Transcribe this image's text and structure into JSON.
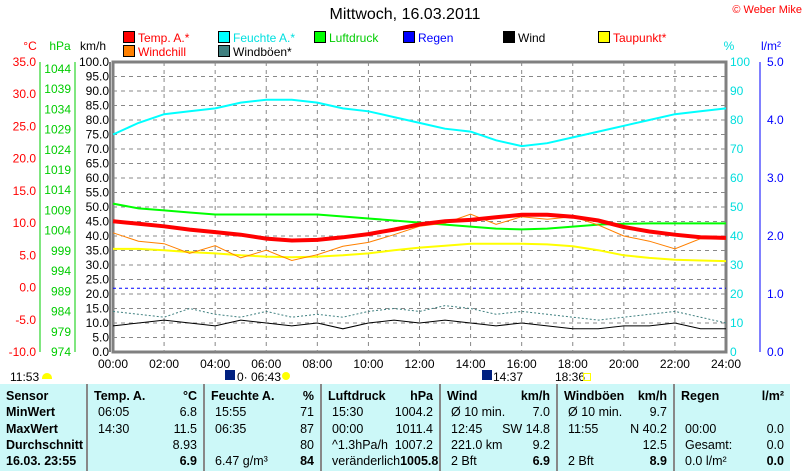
{
  "title": "Mittwoch, 16.03.2011",
  "copyright": "© Weber Mike",
  "legend": [
    {
      "label": "Temp. A.*",
      "color": "#ff0000",
      "text_color": "#ff0000"
    },
    {
      "label": "Feuchte A.*",
      "color": "#00ffff",
      "text_color": "#00e0e0"
    },
    {
      "label": "Luftdruck",
      "color": "#00ff00",
      "text_color": "#00cc00"
    },
    {
      "label": "Regen",
      "color": "#0000ff",
      "text_color": "#0000ff"
    },
    {
      "label": "Wind",
      "color": "#000000",
      "text_color": "#000000"
    },
    {
      "label": "Taupunkt*",
      "color": "#ffff00",
      "text_color": "#ff0000"
    },
    {
      "label": "Windchill",
      "color": "#ff8000",
      "text_color": "#ff0000"
    },
    {
      "label": "Windböen*",
      "color": "#408080",
      "text_color": "#000000"
    }
  ],
  "chart_data": {
    "type": "line",
    "title": "Mittwoch, 16.03.2011",
    "axes": {
      "celsius": {
        "label": "°C",
        "ticks": [
          "35.0",
          "30.0",
          "25.0",
          "20.0",
          "15.0",
          "10.0",
          "5.0",
          "0.0",
          "-5.0",
          "-10.0"
        ],
        "range": [
          -10,
          35
        ]
      },
      "hpa": {
        "label": "hPa",
        "ticks": [
          "1044",
          "1039",
          "1034",
          "1029",
          "1024",
          "1019",
          "1014",
          "1009",
          "1004",
          "999",
          "994",
          "989",
          "984",
          "979",
          "974"
        ],
        "range": [
          974,
          1044
        ]
      },
      "kmh": {
        "label": "km/h",
        "ticks": [
          "100.0",
          "95.0",
          "90.0",
          "85.0",
          "80.0",
          "75.0",
          "70.0",
          "65.0",
          "60.0",
          "55.0",
          "50.0",
          "45.0",
          "40.0",
          "35.0",
          "30.0",
          "25.0",
          "20.0",
          "15.0",
          "10.0",
          "5.0",
          "0.0"
        ],
        "range": [
          0,
          100
        ]
      },
      "percent": {
        "label": "%",
        "ticks": [
          "100",
          "90",
          "80",
          "70",
          "60",
          "50",
          "40",
          "30",
          "20",
          "10",
          "0"
        ],
        "range": [
          0,
          100
        ]
      },
      "rain": {
        "label": "l/m²",
        "ticks": [
          "5.0",
          "4.0",
          "3.0",
          "2.0",
          "1.0",
          "0.0"
        ],
        "range": [
          0,
          5
        ]
      },
      "x": {
        "ticks": [
          "00:00",
          "02:00",
          "04:00",
          "06:00",
          "08:00",
          "10:00",
          "12:00",
          "14:00",
          "16:00",
          "18:00",
          "20:00",
          "22:00",
          "24:00"
        ],
        "range": [
          0,
          24
        ]
      }
    },
    "x_hours": [
      0,
      1,
      2,
      3,
      4,
      5,
      6,
      7,
      8,
      9,
      10,
      11,
      12,
      13,
      14,
      15,
      16,
      17,
      18,
      19,
      20,
      21,
      22,
      23,
      24
    ],
    "series": [
      {
        "name": "Feuchte A.*",
        "axis": "percent",
        "color": "#00ffff",
        "width": 2,
        "values": [
          75,
          79,
          82,
          83,
          84,
          86,
          87,
          87,
          86,
          84,
          83,
          81,
          79,
          77,
          76,
          73,
          71,
          72,
          74,
          76,
          78,
          80,
          82,
          83,
          84
        ]
      },
      {
        "name": "Luftdruck",
        "axis": "hpa",
        "color": "#00ff00",
        "width": 2,
        "values": [
          1010.7,
          1009.5,
          1009,
          1008.5,
          1008,
          1008,
          1008,
          1008,
          1008,
          1007.5,
          1007,
          1006.5,
          1006,
          1005.5,
          1005,
          1004.5,
          1004.3,
          1004.5,
          1005,
          1005.5,
          1005.7,
          1005.8,
          1005.8,
          1005.8,
          1005.8
        ]
      },
      {
        "name": "Taupunkt*",
        "axis": "celsius",
        "color": "#ffff00",
        "width": 2,
        "values": [
          6,
          6,
          5.8,
          5.5,
          5.3,
          5,
          4.8,
          4.7,
          4.8,
          5,
          5.3,
          5.8,
          6.2,
          6.5,
          6.8,
          6.8,
          6.8,
          6.7,
          6.4,
          5.8,
          5,
          4.6,
          4.3,
          4.2,
          4.1
        ]
      },
      {
        "name": "Windchill",
        "axis": "celsius",
        "color": "#ff8000",
        "width": 1,
        "values": [
          8.5,
          7.2,
          6.8,
          5.3,
          6.5,
          4.6,
          5.8,
          4.2,
          5.1,
          6.4,
          7.0,
          8.2,
          9.5,
          10.0,
          11.4,
          9.8,
          11.0,
          10.6,
          11.0,
          9.7,
          8.0,
          7.2,
          6.0,
          7.6,
          7.5
        ]
      },
      {
        "name": "Temp. A.*",
        "axis": "celsius",
        "color": "#ff0000",
        "width": 4,
        "values": [
          10.3,
          9.9,
          9.5,
          9.0,
          8.6,
          8.2,
          7.6,
          7.3,
          7.4,
          7.8,
          8.3,
          9.0,
          9.8,
          10.3,
          10.5,
          10.9,
          11.3,
          11.3,
          11.0,
          10.4,
          9.4,
          8.7,
          8.2,
          7.8,
          7.7
        ]
      },
      {
        "name": "Windböen*",
        "axis": "kmh",
        "color": "#408080",
        "width": 1,
        "dash": "2,2",
        "values": [
          14,
          13,
          12,
          15,
          13,
          12,
          14,
          12,
          13,
          12,
          14,
          15,
          14,
          16,
          15,
          13,
          14,
          13,
          12,
          11,
          12,
          13,
          14,
          12,
          10
        ]
      },
      {
        "name": "Wind",
        "axis": "kmh",
        "color": "#000000",
        "width": 1,
        "values": [
          9,
          10,
          11,
          10,
          9,
          11,
          10,
          9,
          10,
          8,
          10,
          11,
          10,
          11,
          10,
          9,
          10,
          9,
          8,
          8,
          9,
          9,
          10,
          8,
          8
        ]
      }
    ],
    "regen_line_kmh": 22
  },
  "astro": {
    "moonset": "11:53",
    "moonrise": "0· 06:43",
    "sunrise_label": "06:43",
    "moon_phase_time": "14:37",
    "sunset": "18:36"
  },
  "table": {
    "sensor": {
      "header": "Sensor",
      "rows": [
        "MinWert",
        "MaxWert",
        "Durchschnitt",
        "16.03. 23:55"
      ]
    },
    "cols": [
      {
        "header": "Temp. A.",
        "unit": "°C",
        "rows": [
          [
            "06:05",
            "6.8"
          ],
          [
            "14:30",
            "11.5"
          ],
          [
            "",
            "8.93"
          ],
          [
            "",
            "6.9"
          ]
        ]
      },
      {
        "header": "Feuchte A.",
        "unit": "%",
        "rows": [
          [
            "15:55",
            "71"
          ],
          [
            "06:35",
            "87"
          ],
          [
            "",
            "80"
          ],
          [
            "6.47 g/m³",
            "84"
          ]
        ]
      },
      {
        "header": "Luftdruck",
        "unit": "hPa",
        "rows": [
          [
            "15:30",
            "1004.2"
          ],
          [
            "00:00",
            "1011.4"
          ],
          [
            "^1.3hPa/h",
            "1007.2"
          ],
          [
            "veränderlich",
            "1005.8"
          ]
        ]
      },
      {
        "header": "Wind",
        "unit": "km/h",
        "rows": [
          [
            "Ø 10 min.",
            "7.0"
          ],
          [
            "12:45",
            "SW 14.8"
          ],
          [
            "221.0 km",
            "9.2"
          ],
          [
            "2 Bft",
            "6.9"
          ]
        ]
      },
      {
        "header": "Windböen",
        "unit": "km/h",
        "rows": [
          [
            "Ø 10 min.",
            "9.7"
          ],
          [
            "11:55",
            "N 40.2"
          ],
          [
            "",
            "12.5"
          ],
          [
            "2 Bft",
            "8.9"
          ]
        ]
      },
      {
        "header": "Regen",
        "unit": "l/m²",
        "rows": [
          [
            "",
            ""
          ],
          [
            "00:00",
            "0.0"
          ],
          [
            "Gesamt:",
            "0.0"
          ],
          [
            "0.0 l/m²",
            "0.0"
          ]
        ]
      }
    ]
  }
}
